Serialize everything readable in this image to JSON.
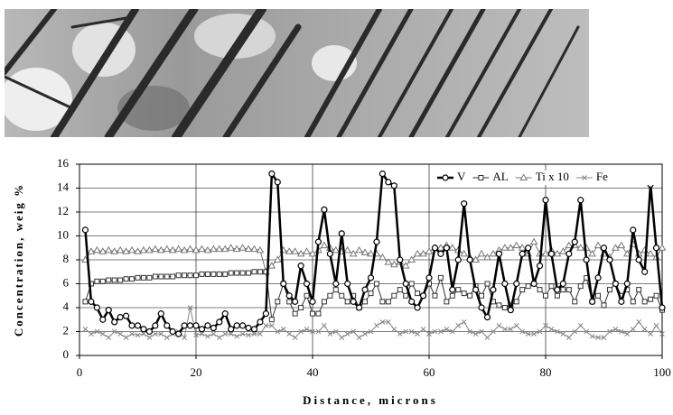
{
  "chart_data": {
    "type": "line",
    "xlabel": "Distance, microns",
    "ylabel": "Concentration, weig %",
    "x": [
      1,
      2,
      3,
      4,
      5,
      6,
      7,
      8,
      9,
      10,
      11,
      12,
      13,
      14,
      15,
      16,
      17,
      18,
      19,
      20,
      21,
      22,
      23,
      24,
      25,
      26,
      27,
      28,
      29,
      30,
      31,
      32,
      33,
      34,
      35,
      36,
      37,
      38,
      39,
      40,
      41,
      42,
      43,
      44,
      45,
      46,
      47,
      48,
      49,
      50,
      51,
      52,
      53,
      54,
      55,
      56,
      57,
      58,
      59,
      60,
      61,
      62,
      63,
      64,
      65,
      66,
      67,
      68,
      69,
      70,
      71,
      72,
      73,
      74,
      75,
      76,
      77,
      78,
      79,
      80,
      81,
      82,
      83,
      84,
      85,
      86,
      87,
      88,
      89,
      90,
      91,
      92,
      93,
      94,
      95,
      96,
      97,
      98,
      99,
      100
    ],
    "series": [
      {
        "name": "V",
        "color": "#000000",
        "marker": "circle",
        "width": 2.5,
        "values": [
          10.5,
          4.5,
          4,
          3,
          3.8,
          2.8,
          3.2,
          3.3,
          2.5,
          2.5,
          2.2,
          2,
          2.5,
          3.5,
          2.5,
          2,
          1.8,
          2.5,
          2.5,
          2.5,
          2.2,
          2.5,
          2.3,
          2.8,
          3.5,
          2.2,
          2.5,
          2.5,
          2.3,
          2.2,
          2.8,
          3.5,
          15.2,
          14.5,
          6,
          5,
          4.5,
          7.5,
          6,
          4.5,
          9.5,
          12.2,
          8.5,
          6,
          10.2,
          6,
          4.5,
          4,
          5.5,
          6.5,
          9.5,
          15.2,
          14.5,
          14.2,
          8,
          6,
          4.5,
          4,
          5,
          6.5,
          9,
          8.5,
          9,
          5.5,
          8,
          12.7,
          8,
          5.5,
          4,
          3.2,
          5.5,
          8.5,
          6,
          3.8,
          6,
          8.5,
          9,
          6,
          7.5,
          13,
          8.5,
          5.5,
          6,
          8.5,
          9.5,
          13,
          8,
          4.5,
          6.5,
          9,
          8,
          6,
          4.5,
          6,
          10.5,
          8,
          7,
          14.3,
          9,
          4
        ]
      },
      {
        "name": "AL",
        "color": "#333333",
        "marker": "square",
        "width": 1,
        "values": [
          4.5,
          6,
          6.2,
          6.2,
          6.3,
          6.3,
          6.3,
          6.4,
          6.4,
          6.5,
          6.5,
          6.5,
          6.6,
          6.6,
          6.6,
          6.6,
          6.7,
          6.7,
          6.7,
          6.7,
          6.8,
          6.8,
          6.8,
          6.8,
          6.8,
          6.9,
          6.9,
          6.9,
          6.9,
          7,
          7,
          7,
          3,
          4.5,
          6,
          4.5,
          3.5,
          4,
          5,
          3.5,
          3.5,
          4.5,
          5,
          5.5,
          5,
          4.5,
          5,
          4,
          4.5,
          5.2,
          6,
          4.5,
          4.5,
          5,
          5.5,
          5,
          6,
          5.2,
          5,
          6,
          5,
          6.5,
          4.5,
          5,
          5.5,
          5.2,
          5,
          5.8,
          5,
          6,
          4.5,
          4.2,
          4,
          4.2,
          4.5,
          5.5,
          5.8,
          6,
          5.5,
          5,
          5.8,
          5,
          5.5,
          5.5,
          4.5,
          5.8,
          6.5,
          4.5,
          5,
          4.2,
          5.5,
          6,
          5,
          5.5,
          4.5,
          5.5,
          4.5,
          4.7,
          5,
          3.8
        ]
      },
      {
        "name": "Ti x 10",
        "color": "#777777",
        "marker": "triangle",
        "width": 1,
        "values": [
          8,
          8.7,
          8.8,
          8.7,
          8.8,
          8.7,
          8.8,
          8.7,
          8.8,
          8.7,
          8.8,
          8.8,
          8.9,
          8.8,
          8.9,
          8.8,
          8.9,
          8.8,
          8.9,
          8.8,
          8.9,
          8.8,
          8.9,
          8.9,
          8.9,
          9,
          8.9,
          9,
          8.9,
          8.9,
          8.8,
          7,
          7.5,
          8,
          8.8,
          8.7,
          8.7,
          8.5,
          8.7,
          8.5,
          8.8,
          9.2,
          9,
          8.8,
          8.7,
          8.8,
          8.5,
          8.8,
          8.6,
          8.5,
          8.5,
          8.2,
          7.8,
          7.6,
          7.8,
          7.5,
          8,
          8.5,
          8.5,
          8.7,
          9,
          9,
          9.2,
          9,
          8.8,
          8.5,
          8.2,
          8,
          8.5,
          8.2,
          8.5,
          8.8,
          9,
          9,
          9.2,
          9,
          8.5,
          9.5,
          8.5,
          8.5,
          8.8,
          8.5,
          8.7,
          9.2,
          9.2,
          9,
          9,
          8.5,
          9.2,
          8.5,
          8.2,
          9,
          9.2,
          8.5,
          9.3,
          8.5,
          8.8,
          8.5,
          8.2,
          9
        ]
      },
      {
        "name": "Fe",
        "color": "#888888",
        "marker": "x",
        "width": 1,
        "values": [
          2.2,
          1.8,
          2,
          1.8,
          1.5,
          2,
          1.8,
          1.5,
          1.8,
          1.7,
          1.8,
          1.5,
          1.8,
          1.8,
          1.5,
          1.8,
          2,
          1.5,
          4,
          1.7,
          1.8,
          1.6,
          1.8,
          1.5,
          1.8,
          1.8,
          1.6,
          1.8,
          1.7,
          1.8,
          1.8,
          2.5,
          2.5,
          2,
          2.2,
          1.8,
          1.5,
          2,
          2.2,
          2,
          2,
          2.5,
          1.8,
          2,
          1.5,
          1.8,
          2,
          1.5,
          1.8,
          2,
          2.5,
          2.8,
          2.8,
          2.2,
          1.8,
          2,
          2,
          1.8,
          2.2,
          1.8,
          2,
          2,
          2.2,
          2,
          2.5,
          2.8,
          2,
          1.8,
          2,
          1.5,
          2,
          2.5,
          2.2,
          2.2,
          2.5,
          2,
          1.8,
          1.8,
          2,
          2.5,
          2.2,
          2,
          1.8,
          1.5,
          2,
          2.5,
          2,
          1.6,
          1.5,
          1.5,
          2,
          2.2,
          2,
          1.8,
          2.2,
          2.8,
          2.2,
          1.8,
          2.5,
          1.8
        ]
      }
    ],
    "xlim": [
      0,
      100
    ],
    "xticks": [
      0,
      20,
      40,
      60,
      80,
      100
    ],
    "ylim": [
      0,
      16
    ],
    "yticks": [
      0,
      2,
      4,
      6,
      8,
      10,
      12,
      14,
      16
    ],
    "grid": true,
    "legend": "top-right"
  }
}
